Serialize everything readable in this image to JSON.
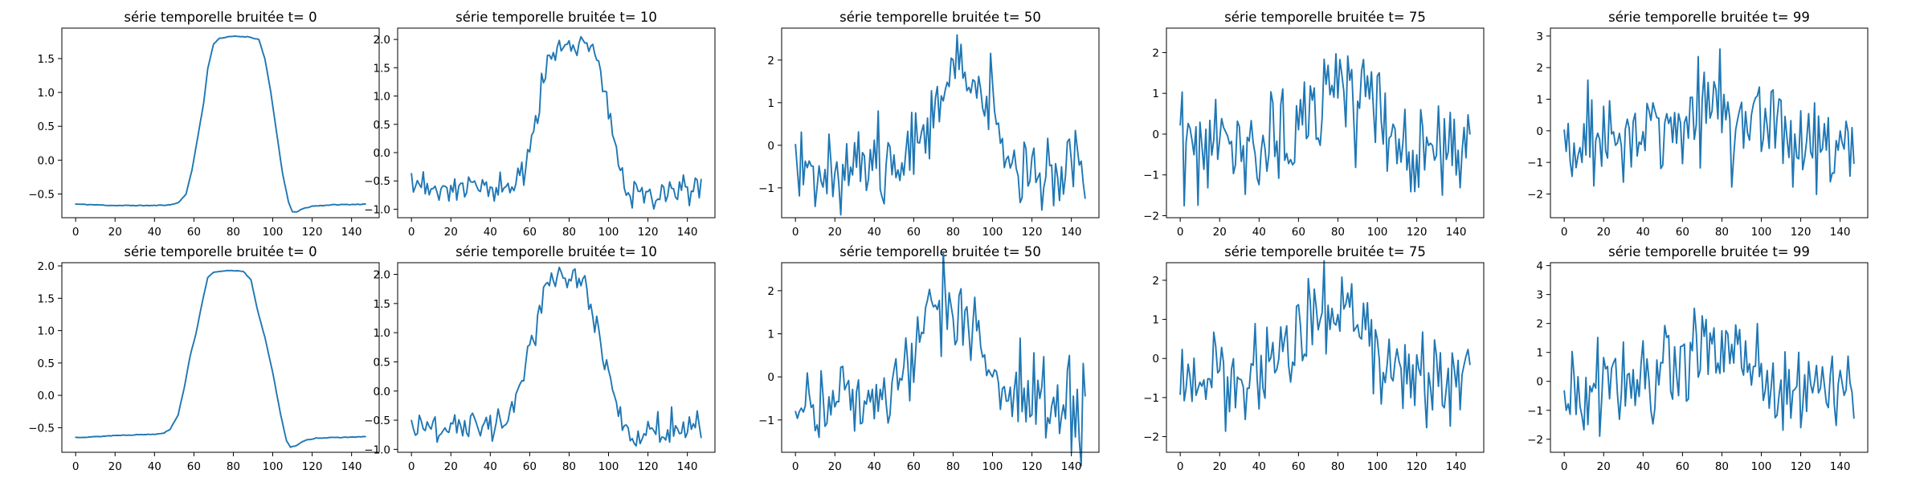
{
  "figure": {
    "background": "#ffffff",
    "line_color": "#1f77b4"
  },
  "chart_data": [
    {
      "type": "line",
      "row": 0,
      "col": 0,
      "title": "série temporelle bruitée t= 0",
      "xlim": [
        -7,
        154
      ],
      "ylim": [
        -0.85,
        1.95
      ],
      "xticks": [
        0,
        20,
        40,
        60,
        80,
        100,
        120,
        140
      ],
      "yticks": [
        -0.5,
        0.0,
        0.5,
        1.0,
        1.5
      ],
      "yticklabels": [
        "−0.5",
        "0.0",
        "0.5",
        "1.0",
        "1.5"
      ],
      "noise": 0.0,
      "seed": 11,
      "keypoints": [
        [
          0,
          -0.65
        ],
        [
          10,
          -0.66
        ],
        [
          20,
          -0.67
        ],
        [
          40,
          -0.67
        ],
        [
          48,
          -0.66
        ],
        [
          52,
          -0.63
        ],
        [
          56,
          -0.5
        ],
        [
          59,
          -0.15
        ],
        [
          62,
          0.35
        ],
        [
          65,
          0.85
        ],
        [
          67,
          1.35
        ],
        [
          70,
          1.72
        ],
        [
          73,
          1.8
        ],
        [
          80,
          1.83
        ],
        [
          88,
          1.82
        ],
        [
          93,
          1.78
        ],
        [
          96,
          1.5
        ],
        [
          99,
          1.0
        ],
        [
          102,
          0.4
        ],
        [
          105,
          -0.2
        ],
        [
          108,
          -0.62
        ],
        [
          110,
          -0.76
        ],
        [
          112,
          -0.77
        ],
        [
          115,
          -0.72
        ],
        [
          120,
          -0.68
        ],
        [
          130,
          -0.66
        ],
        [
          147,
          -0.65
        ]
      ]
    },
    {
      "type": "line",
      "row": 0,
      "col": 1,
      "title": "série temporelle bruitée t= 10",
      "xlim": [
        -7,
        154
      ],
      "ylim": [
        -1.15,
        2.2
      ],
      "xticks": [
        0,
        20,
        40,
        60,
        80,
        100,
        120,
        140
      ],
      "yticks": [
        -1.0,
        -0.5,
        0.0,
        0.5,
        1.0,
        1.5,
        2.0
      ],
      "yticklabels": [
        "−1.0",
        "−0.5",
        "0.0",
        "0.5",
        "1.0",
        "1.5",
        "2.0"
      ],
      "noise": 0.14,
      "seed": 23,
      "keypoints": [
        [
          0,
          -0.65
        ],
        [
          48,
          -0.63
        ],
        [
          55,
          -0.5
        ],
        [
          59,
          -0.15
        ],
        [
          62,
          0.35
        ],
        [
          65,
          0.85
        ],
        [
          67,
          1.35
        ],
        [
          70,
          1.72
        ],
        [
          73,
          1.8
        ],
        [
          80,
          1.85
        ],
        [
          88,
          1.82
        ],
        [
          93,
          1.76
        ],
        [
          96,
          1.5
        ],
        [
          99,
          1.0
        ],
        [
          102,
          0.4
        ],
        [
          105,
          -0.2
        ],
        [
          108,
          -0.6
        ],
        [
          110,
          -0.72
        ],
        [
          147,
          -0.65
        ]
      ]
    },
    {
      "type": "line",
      "row": 0,
      "col": 2,
      "title": "série temporelle bruitée t= 50",
      "xlim": [
        -7,
        154
      ],
      "ylim": [
        -1.7,
        2.75
      ],
      "xticks": [
        0,
        20,
        40,
        60,
        80,
        100,
        120,
        140
      ],
      "yticks": [
        -1,
        0,
        1,
        2
      ],
      "yticklabels": [
        "−1",
        "0",
        "1",
        "2"
      ],
      "noise": 0.45,
      "seed": 37,
      "keypoints": [
        [
          0,
          -0.5
        ],
        [
          48,
          -0.5
        ],
        [
          55,
          -0.35
        ],
        [
          60,
          0.1
        ],
        [
          65,
          0.6
        ],
        [
          70,
          1.1
        ],
        [
          75,
          1.5
        ],
        [
          85,
          1.6
        ],
        [
          93,
          1.5
        ],
        [
          98,
          0.9
        ],
        [
          103,
          0.2
        ],
        [
          108,
          -0.3
        ],
        [
          115,
          -0.5
        ],
        [
          147,
          -0.6
        ]
      ]
    },
    {
      "type": "line",
      "row": 0,
      "col": 3,
      "title": "série temporelle bruitée t= 75",
      "xlim": [
        -7,
        154
      ],
      "ylim": [
        -2.05,
        2.6
      ],
      "xticks": [
        0,
        20,
        40,
        60,
        80,
        100,
        120,
        140
      ],
      "yticks": [
        -2,
        -1,
        0,
        1,
        2
      ],
      "yticklabels": [
        "−2",
        "−1",
        "0",
        "1",
        "2"
      ],
      "noise": 0.62,
      "seed": 53,
      "keypoints": [
        [
          0,
          -0.4
        ],
        [
          45,
          -0.4
        ],
        [
          55,
          -0.1
        ],
        [
          62,
          0.35
        ],
        [
          70,
          0.85
        ],
        [
          80,
          1.05
        ],
        [
          90,
          0.95
        ],
        [
          97,
          0.6
        ],
        [
          103,
          0.1
        ],
        [
          110,
          -0.3
        ],
        [
          120,
          -0.4
        ],
        [
          147,
          -0.45
        ]
      ]
    },
    {
      "type": "line",
      "row": 0,
      "col": 4,
      "title": "série temporelle bruitée t= 99",
      "xlim": [
        -7,
        154
      ],
      "ylim": [
        -2.75,
        3.25
      ],
      "xticks": [
        0,
        20,
        40,
        60,
        80,
        100,
        120,
        140
      ],
      "yticks": [
        -2,
        -1,
        0,
        1,
        2,
        3
      ],
      "yticklabels": [
        "−2",
        "−1",
        "0",
        "1",
        "2",
        "3"
      ],
      "noise": 0.82,
      "seed": 71,
      "keypoints": [
        [
          0,
          -0.3
        ],
        [
          45,
          -0.25
        ],
        [
          55,
          0.05
        ],
        [
          65,
          0.45
        ],
        [
          75,
          0.75
        ],
        [
          85,
          0.7
        ],
        [
          95,
          0.4
        ],
        [
          105,
          0.0
        ],
        [
          120,
          -0.3
        ],
        [
          147,
          -0.3
        ]
      ]
    },
    {
      "type": "line",
      "row": 1,
      "col": 0,
      "title": "série temporelle bruitée t= 0",
      "xlim": [
        -7,
        154
      ],
      "ylim": [
        -0.88,
        2.05
      ],
      "xticks": [
        0,
        20,
        40,
        60,
        80,
        100,
        120,
        140
      ],
      "yticks": [
        -0.5,
        0.0,
        0.5,
        1.0,
        1.5,
        2.0
      ],
      "yticklabels": [
        "−0.5",
        "0.0",
        "0.5",
        "1.0",
        "1.5",
        "2.0"
      ],
      "noise": 0.0,
      "seed": 13,
      "keypoints": [
        [
          0,
          -0.65
        ],
        [
          10,
          -0.64
        ],
        [
          20,
          -0.62
        ],
        [
          30,
          -0.61
        ],
        [
          40,
          -0.6
        ],
        [
          45,
          -0.58
        ],
        [
          48,
          -0.52
        ],
        [
          52,
          -0.3
        ],
        [
          55,
          0.1
        ],
        [
          58,
          0.6
        ],
        [
          61,
          0.95
        ],
        [
          64,
          1.4
        ],
        [
          67,
          1.82
        ],
        [
          70,
          1.9
        ],
        [
          78,
          1.93
        ],
        [
          85,
          1.92
        ],
        [
          89,
          1.78
        ],
        [
          92,
          1.35
        ],
        [
          96,
          0.9
        ],
        [
          100,
          0.35
        ],
        [
          104,
          -0.3
        ],
        [
          107,
          -0.7
        ],
        [
          109,
          -0.8
        ],
        [
          112,
          -0.78
        ],
        [
          116,
          -0.7
        ],
        [
          122,
          -0.66
        ],
        [
          135,
          -0.65
        ],
        [
          147,
          -0.64
        ]
      ]
    },
    {
      "type": "line",
      "row": 1,
      "col": 1,
      "title": "série temporelle bruitée t= 10",
      "xlim": [
        -7,
        154
      ],
      "ylim": [
        -1.05,
        2.2
      ],
      "xticks": [
        0,
        20,
        40,
        60,
        80,
        100,
        120,
        140
      ],
      "yticks": [
        -1.0,
        -0.5,
        0.0,
        0.5,
        1.0,
        1.5,
        2.0
      ],
      "yticklabels": [
        "−1.0",
        "−0.5",
        "0.0",
        "0.5",
        "1.0",
        "1.5",
        "2.0"
      ],
      "noise": 0.14,
      "seed": 29,
      "keypoints": [
        [
          0,
          -0.65
        ],
        [
          40,
          -0.6
        ],
        [
          48,
          -0.5
        ],
        [
          52,
          -0.3
        ],
        [
          55,
          0.1
        ],
        [
          58,
          0.6
        ],
        [
          61,
          0.95
        ],
        [
          64,
          1.4
        ],
        [
          67,
          1.82
        ],
        [
          70,
          1.9
        ],
        [
          78,
          1.93
        ],
        [
          85,
          1.9
        ],
        [
          89,
          1.75
        ],
        [
          92,
          1.35
        ],
        [
          96,
          0.9
        ],
        [
          100,
          0.35
        ],
        [
          104,
          -0.3
        ],
        [
          107,
          -0.7
        ],
        [
          110,
          -0.78
        ],
        [
          147,
          -0.62
        ]
      ]
    },
    {
      "type": "line",
      "row": 1,
      "col": 2,
      "title": "série temporelle bruitée t= 50",
      "xlim": [
        -7,
        154
      ],
      "ylim": [
        -1.75,
        2.65
      ],
      "xticks": [
        0,
        20,
        40,
        60,
        80,
        100,
        120,
        140
      ],
      "yticks": [
        -1,
        0,
        1,
        2
      ],
      "yticklabels": [
        "−1",
        "0",
        "1",
        "2"
      ],
      "noise": 0.45,
      "seed": 41,
      "keypoints": [
        [
          0,
          -0.55
        ],
        [
          45,
          -0.5
        ],
        [
          52,
          -0.2
        ],
        [
          58,
          0.4
        ],
        [
          63,
          1.0
        ],
        [
          68,
          1.5
        ],
        [
          75,
          1.65
        ],
        [
          85,
          1.6
        ],
        [
          90,
          1.3
        ],
        [
          95,
          0.8
        ],
        [
          100,
          0.1
        ],
        [
          106,
          -0.4
        ],
        [
          115,
          -0.6
        ],
        [
          147,
          -0.55
        ]
      ]
    },
    {
      "type": "line",
      "row": 1,
      "col": 3,
      "title": "série temporelle bruitée t= 75",
      "xlim": [
        -7,
        154
      ],
      "ylim": [
        -2.4,
        2.45
      ],
      "xticks": [
        0,
        20,
        40,
        60,
        80,
        100,
        120,
        140
      ],
      "yticks": [
        -2,
        -1,
        0,
        1,
        2
      ],
      "yticklabels": [
        "−2",
        "−1",
        "0",
        "1",
        "2"
      ],
      "noise": 0.6,
      "seed": 59,
      "keypoints": [
        [
          0,
          -0.3
        ],
        [
          40,
          -0.3
        ],
        [
          50,
          0.05
        ],
        [
          60,
          0.5
        ],
        [
          70,
          0.95
        ],
        [
          80,
          1.1
        ],
        [
          90,
          0.9
        ],
        [
          97,
          0.5
        ],
        [
          103,
          0.0
        ],
        [
          110,
          -0.4
        ],
        [
          120,
          -0.5
        ],
        [
          147,
          -0.5
        ]
      ]
    },
    {
      "type": "line",
      "row": 1,
      "col": 4,
      "title": "série temporelle bruitée t= 99",
      "xlim": [
        -7,
        154
      ],
      "ylim": [
        -2.45,
        4.1
      ],
      "xticks": [
        0,
        20,
        40,
        60,
        80,
        100,
        120,
        140
      ],
      "yticks": [
        -2,
        -1,
        0,
        1,
        2,
        3,
        4
      ],
      "yticklabels": [
        "−2",
        "−1",
        "0",
        "1",
        "2",
        "3",
        "4"
      ],
      "noise": 0.78,
      "seed": 83,
      "keypoints": [
        [
          0,
          -0.3
        ],
        [
          40,
          -0.2
        ],
        [
          50,
          0.2
        ],
        [
          60,
          0.7
        ],
        [
          70,
          1.2
        ],
        [
          80,
          1.2
        ],
        [
          90,
          0.8
        ],
        [
          100,
          0.3
        ],
        [
          110,
          -0.2
        ],
        [
          120,
          -0.4
        ],
        [
          147,
          -0.4
        ]
      ]
    }
  ]
}
